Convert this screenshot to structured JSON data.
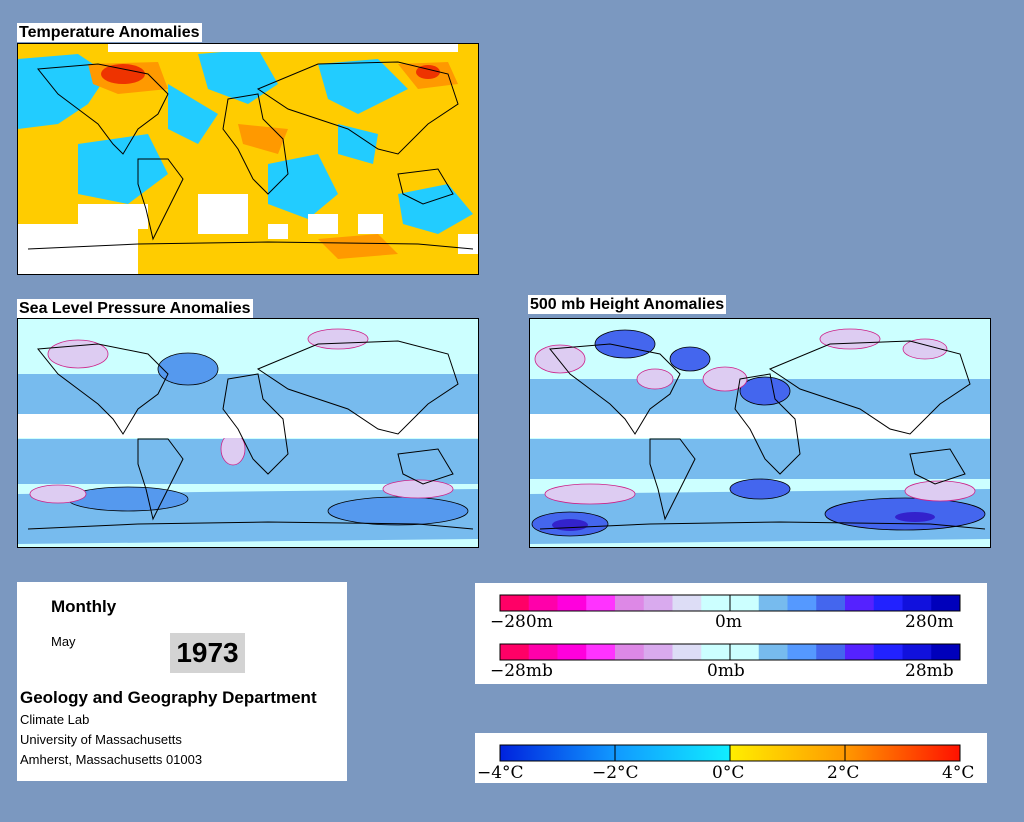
{
  "panels": {
    "temperature_title": "Temperature Anomalies",
    "slp_title": "Sea Level Pressure Anomalies",
    "height_title": "500 mb Height Anomalies"
  },
  "info": {
    "period": "Monthly",
    "month": "May",
    "year": "1973",
    "department": "Geology and Geography Department",
    "lab": "Climate Lab",
    "university": "University of Massachusetts",
    "address": "Amherst, Massachusetts 01003"
  },
  "legend_height": {
    "left": "−280m",
    "center": "0m",
    "right": "280m",
    "colors": [
      "#ff0066",
      "#ff00aa",
      "#ff00dd",
      "#ff33ff",
      "#dd88e6",
      "#d9aaee",
      "#ddddf6",
      "#ccffff",
      "#ccffff",
      "#77bbee",
      "#5599ff",
      "#4466ee",
      "#5522ff",
      "#2222ff",
      "#1111dd",
      "#0000bb"
    ]
  },
  "legend_pressure": {
    "left": "−28mb",
    "center": "0mb",
    "right": "28mb"
  },
  "legend_temperature": {
    "labels": [
      "−4°C",
      "−2°C",
      "0°C",
      "2°C",
      "4°C"
    ]
  },
  "colors": {
    "background": "#7b98c0",
    "warm": "#ffcc00",
    "cold": "#22bbff",
    "ocean_pale": "#ccffff"
  }
}
